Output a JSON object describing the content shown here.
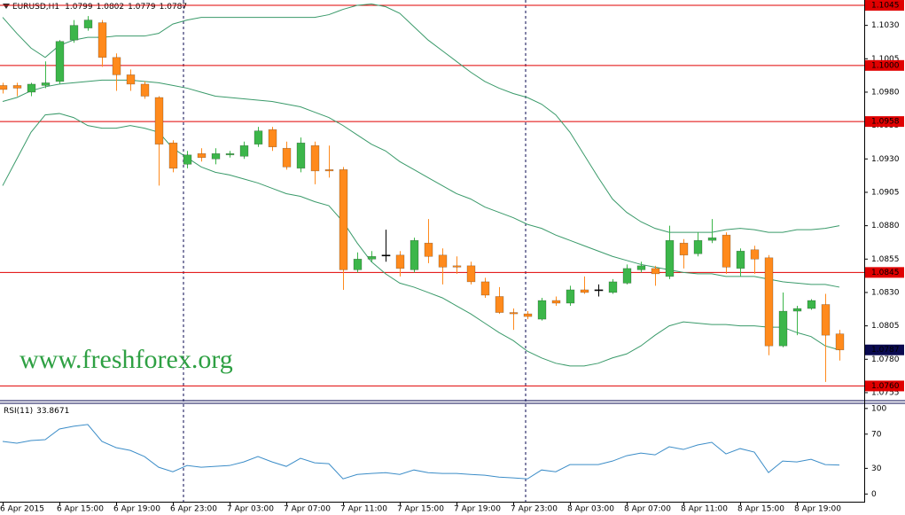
{
  "chart_data": {
    "type": "candlestick",
    "symbol": "EURUSD,H1",
    "watermark": "www.freshforex.org",
    "categories": [
      "6 Apr 2015",
      null,
      null,
      null,
      "6 Apr 15:00",
      null,
      null,
      null,
      "6 Apr 19:00",
      null,
      null,
      null,
      "6 Apr 23:00",
      null,
      null,
      null,
      "7 Apr 03:00",
      null,
      null,
      null,
      "7 Apr 07:00",
      null,
      null,
      null,
      "7 Apr 11:00",
      null,
      null,
      null,
      "7 Apr 15:00",
      null,
      null,
      null,
      "7 Apr 19:00",
      null,
      null,
      null,
      "7 Apr 23:00",
      null,
      null,
      null,
      "8 Apr 03:00",
      null,
      null,
      null,
      "8 Apr 07:00",
      null,
      null,
      null,
      "8 Apr 11:00",
      null,
      null,
      null,
      "8 Apr 15:00",
      null,
      null,
      null,
      "8 Apr 19:00",
      null,
      null,
      null
    ],
    "open": [
      1.0985,
      1.0985,
      1.098,
      1.0985,
      1.0988,
      1.1019,
      1.1028,
      1.1032,
      1.1006,
      1.0993,
      1.0986,
      1.0976,
      1.0942,
      1.0926,
      1.0934,
      1.093,
      1.0933,
      1.0932,
      1.0941,
      1.0952,
      1.0938,
      1.0923,
      1.094,
      1.0922,
      1.0922,
      1.0847,
      1.0855,
      1.0858,
      1.0858,
      1.0847,
      1.0867,
      1.0858,
      1.085,
      1.085,
      1.0838,
      1.0827,
      1.0815,
      1.0814,
      1.081,
      1.0824,
      1.0822,
      1.0832,
      1.0832,
      1.083,
      1.0837,
      1.0847,
      1.0848,
      1.0842,
      1.0867,
      1.0859,
      1.0869,
      1.0873,
      1.0848,
      1.0862,
      1.0856,
      1.079,
      1.0816,
      1.0818,
      1.0821,
      1.0799
    ],
    "high": [
      1.0987,
      1.0987,
      1.0987,
      1.1003,
      1.1019,
      1.1034,
      1.1037,
      1.1034,
      1.1009,
      1.0997,
      1.0988,
      1.0977,
      1.0944,
      1.0936,
      1.0938,
      1.0938,
      1.0936,
      1.0943,
      1.0954,
      1.0954,
      1.0943,
      1.0946,
      1.0943,
      1.094,
      1.0924,
      1.086,
      1.0861,
      1.0877,
      1.0861,
      1.0871,
      1.0885,
      1.0863,
      1.0857,
      1.0853,
      1.0841,
      1.0834,
      1.0818,
      1.0816,
      1.0826,
      1.0827,
      1.0835,
      1.0842,
      1.0836,
      1.084,
      1.0851,
      1.0853,
      1.085,
      1.088,
      1.087,
      1.0875,
      1.0885,
      1.0875,
      1.0863,
      1.0865,
      1.0858,
      1.083,
      1.082,
      1.0825,
      1.0829,
      1.0802
    ],
    "low": [
      1.0979,
      1.0977,
      1.0977,
      1.0983,
      1.0986,
      1.1017,
      1.1026,
      1.0999,
      1.0981,
      1.0981,
      1.0975,
      1.091,
      1.092,
      1.0923,
      1.0928,
      1.0926,
      1.0931,
      1.093,
      1.0939,
      1.0936,
      1.0922,
      1.092,
      1.0911,
      1.0916,
      1.0832,
      1.0845,
      1.0853,
      1.0853,
      1.0842,
      1.0845,
      1.0852,
      1.0836,
      1.0844,
      1.0836,
      1.0826,
      1.0814,
      1.0802,
      1.081,
      1.0809,
      1.082,
      1.082,
      1.0829,
      1.0827,
      1.0829,
      1.0836,
      1.0845,
      1.0835,
      1.084,
      1.0848,
      1.0857,
      1.0867,
      1.0844,
      1.0842,
      1.0844,
      1.0783,
      1.0789,
      1.0798,
      1.0817,
      1.0763,
      1.0779
    ],
    "close": [
      1.0982,
      1.0983,
      1.0986,
      1.0987,
      1.1018,
      1.103,
      1.1034,
      1.1006,
      1.0993,
      1.0986,
      1.0977,
      1.0941,
      1.0923,
      1.0933,
      1.0931,
      1.0934,
      1.0934,
      1.094,
      1.0951,
      1.0939,
      1.0924,
      1.0942,
      1.0921,
      1.0921,
      1.0847,
      1.0855,
      1.0857,
      1.0858,
      1.0848,
      1.0869,
      1.0857,
      1.0849,
      1.0849,
      1.0838,
      1.0828,
      1.0815,
      1.0814,
      1.0812,
      1.0824,
      1.0822,
      1.0832,
      1.083,
      1.0832,
      1.0838,
      1.0848,
      1.085,
      1.0844,
      1.0869,
      1.0858,
      1.0869,
      1.0871,
      1.0849,
      1.0861,
      1.0855,
      1.079,
      1.0816,
      1.0818,
      1.0824,
      1.0798,
      1.0787
    ],
    "up_color": "#3cb64a",
    "down_color": "#ff8a1c",
    "doji_color": "#000000",
    "bands": {
      "color": "#3a9a6a",
      "upper": [
        1.1036,
        1.1024,
        1.1013,
        1.1006,
        1.1015,
        1.1019,
        1.1021,
        1.1021,
        1.1022,
        1.1022,
        1.1022,
        1.1024,
        1.1031,
        1.1034,
        1.1036,
        1.1036,
        1.1036,
        1.1036,
        1.1036,
        1.1036,
        1.1036,
        1.1036,
        1.1036,
        1.1038,
        1.1042,
        1.1045,
        1.1046,
        1.1044,
        1.1039,
        1.1029,
        1.1019,
        1.1011,
        1.1003,
        1.0995,
        1.0988,
        1.0983,
        1.0979,
        1.0976,
        1.0971,
        1.0963,
        1.095,
        1.0933,
        1.0916,
        1.09,
        1.089,
        1.0883,
        1.0878,
        1.0875,
        1.0875,
        1.0875,
        1.0875,
        1.0877,
        1.0878,
        1.0877,
        1.0875,
        1.0875,
        1.0877,
        1.0877,
        1.0878,
        1.088
      ],
      "middle": [
        1.0973,
        1.0976,
        1.0981,
        1.0984,
        1.0986,
        1.0987,
        1.0988,
        1.0989,
        1.0989,
        1.0989,
        1.0988,
        1.0987,
        1.0985,
        1.0983,
        1.098,
        1.0977,
        1.0976,
        1.0975,
        1.0974,
        1.0973,
        1.0971,
        1.0969,
        1.0965,
        1.0961,
        1.0955,
        1.0948,
        1.0941,
        1.0936,
        1.0928,
        1.0922,
        1.0916,
        1.091,
        1.0904,
        1.09,
        1.0894,
        1.089,
        1.0886,
        1.0881,
        1.0878,
        1.0873,
        1.0869,
        1.0865,
        1.0861,
        1.0857,
        1.0854,
        1.0851,
        1.0849,
        1.0847,
        1.0845,
        1.0844,
        1.0844,
        1.0842,
        1.0842,
        1.0842,
        1.084,
        1.0838,
        1.0837,
        1.0836,
        1.0836,
        1.0834
      ],
      "lower": [
        1.091,
        1.093,
        1.095,
        1.0963,
        1.0964,
        1.0961,
        1.0955,
        1.0953,
        1.0953,
        1.0955,
        1.0953,
        1.095,
        1.0938,
        1.0931,
        1.0924,
        1.092,
        1.0918,
        1.0915,
        1.0912,
        1.0908,
        1.0904,
        1.0902,
        1.0898,
        1.0895,
        1.0883,
        1.0867,
        1.0853,
        1.0844,
        1.0837,
        1.0834,
        1.083,
        1.0826,
        1.082,
        1.0814,
        1.0807,
        1.08,
        1.0794,
        1.0786,
        1.0781,
        1.0777,
        1.0775,
        1.0775,
        1.0777,
        1.0781,
        1.0784,
        1.079,
        1.0798,
        1.0805,
        1.0808,
        1.0807,
        1.0806,
        1.0806,
        1.0805,
        1.0805,
        1.0804,
        1.0804,
        1.08,
        1.0797,
        1.079,
        1.0787
      ]
    },
    "levels": [
      {
        "value": 1.1045,
        "label": "1.1045"
      },
      {
        "value": 1.1,
        "label": "1.1000"
      },
      {
        "value": 1.0958,
        "label": "1.0958"
      },
      {
        "value": 1.0845,
        "label": "1.0845"
      },
      {
        "value": 1.076,
        "label": "1.0760"
      }
    ],
    "level_color": "#e00000",
    "price_label_color": "#0a0a50",
    "ylim": [
      1.0749,
      1.1049
    ],
    "yticks": [
      {
        "value": 1.103,
        "label": "1.1030"
      },
      1.1005,
      {
        "value": 1.098,
        "label": "1.0980"
      },
      1.0955,
      {
        "value": 1.093,
        "label": "1.0930"
      },
      1.0905,
      {
        "value": 1.088,
        "label": "1.0880"
      },
      1.0855,
      {
        "value": 1.083,
        "label": "1.0830"
      },
      1.0805,
      {
        "value": 1.078,
        "label": "1.0780"
      },
      1.0755
    ],
    "rsi": {
      "title": "RSI(11)",
      "color": "#3c8dc8",
      "values": [
        61.5,
        59.4,
        62.5,
        63.5,
        76,
        79.2,
        81.3,
        61.5,
        54.2,
        51,
        43.8,
        31.3,
        26,
        33.3,
        31.3,
        32.3,
        33.3,
        37.5,
        43.8,
        37.5,
        32.3,
        41.7,
        36.5,
        35.4,
        17.7,
        22.9,
        24,
        25,
        22.9,
        28.1,
        25,
        24,
        24,
        22.9,
        21.9,
        19.8,
        18.8,
        17.7,
        28.1,
        26,
        34.4,
        34.4,
        34.4,
        38.5,
        44.8,
        47.9,
        45.8,
        55.2,
        52.1,
        57.3,
        60.4,
        46.9,
        53.1,
        49,
        25,
        38.5,
        37.5,
        40.6,
        34.4,
        33.8671
      ],
      "ylim": [
        -9,
        105
      ],
      "yticks": [
        0,
        30,
        70,
        100
      ]
    }
  }
}
